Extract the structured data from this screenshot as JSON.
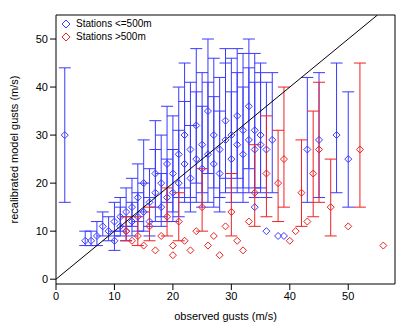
{
  "chart_data": {
    "type": "scatter",
    "x_label": "observed gusts (m/s)",
    "y_label": "recalibrated model gusts (m/s)",
    "xlim": [
      0,
      58
    ],
    "ylim": [
      -1,
      55
    ],
    "xticks": [
      0,
      10,
      20,
      30,
      40,
      50
    ],
    "yticks": [
      0,
      10,
      20,
      30,
      40,
      50
    ],
    "legend": "top-left",
    "grid": false,
    "series": [
      {
        "name": "Stations <=500m",
        "color": "#3a3aff",
        "marker": "diamond",
        "x": [
          1.5,
          5,
          6,
          7,
          8,
          9,
          10,
          10,
          11,
          11,
          12,
          12,
          13,
          13,
          14,
          14,
          15,
          15,
          16,
          16,
          17,
          17,
          18,
          18,
          19,
          19,
          20,
          20,
          21,
          21,
          22,
          22,
          23,
          23,
          24,
          24,
          25,
          25,
          26,
          26,
          27,
          27,
          28,
          28,
          29,
          29,
          30,
          30,
          31,
          31,
          32,
          32,
          33,
          33,
          34,
          34,
          35,
          35,
          36,
          37,
          38,
          39,
          43,
          45,
          48,
          50,
          36,
          34
        ],
        "values": [
          30,
          8,
          8,
          9,
          11,
          10,
          12,
          8,
          13,
          11,
          14,
          10,
          15,
          12,
          13,
          17,
          14,
          20,
          16,
          12,
          18,
          22,
          15,
          20,
          24,
          17,
          22,
          18,
          26,
          20,
          24,
          30,
          21,
          27,
          25,
          32,
          23,
          28,
          26,
          35,
          24,
          30,
          27,
          22,
          29,
          33,
          25,
          30,
          28,
          34,
          26,
          31,
          29,
          36,
          27,
          31,
          30,
          28,
          27,
          29,
          9,
          9,
          27,
          29,
          30,
          25,
          10,
          15
        ],
        "error": [
          [
            14,
            14
          ],
          [
            1,
            2
          ],
          [
            1,
            2
          ],
          [
            2,
            3
          ],
          [
            2,
            3
          ],
          [
            2,
            3
          ],
          [
            3,
            4
          ],
          [
            2,
            2
          ],
          [
            3,
            4
          ],
          [
            2,
            4
          ],
          [
            3,
            5
          ],
          [
            2,
            3
          ],
          [
            4,
            6
          ],
          [
            3,
            4
          ],
          [
            3,
            5
          ],
          [
            5,
            7
          ],
          [
            4,
            6
          ],
          [
            6,
            9
          ],
          [
            5,
            7
          ],
          [
            3,
            5
          ],
          [
            6,
            9
          ],
          [
            7,
            11
          ],
          [
            4,
            7
          ],
          [
            7,
            10
          ],
          [
            8,
            12
          ],
          [
            5,
            8
          ],
          [
            8,
            12
          ],
          [
            6,
            9
          ],
          [
            9,
            14
          ],
          [
            7,
            11
          ],
          [
            8,
            13
          ],
          [
            11,
            15
          ],
          [
            7,
            11
          ],
          [
            10,
            14
          ],
          [
            9,
            14
          ],
          [
            12,
            16
          ],
          [
            8,
            13
          ],
          [
            10,
            15
          ],
          [
            10,
            15
          ],
          [
            13,
            15
          ],
          [
            9,
            14
          ],
          [
            11,
            16
          ],
          [
            10,
            15
          ],
          [
            8,
            13
          ],
          [
            11,
            16
          ],
          [
            12,
            15
          ],
          [
            9,
            14
          ],
          [
            11,
            16
          ],
          [
            10,
            15
          ],
          [
            13,
            14
          ],
          [
            10,
            14
          ],
          [
            12,
            16
          ],
          [
            11,
            15
          ],
          [
            13,
            14
          ],
          [
            10,
            14
          ],
          [
            12,
            16
          ],
          [
            11,
            15
          ],
          [
            10,
            15
          ],
          [
            10,
            14
          ],
          [
            11,
            14
          ],
          null,
          null,
          [
            11,
            15
          ],
          [
            12,
            14
          ],
          [
            12,
            15
          ],
          [
            10,
            14
          ],
          null,
          null
        ]
      },
      {
        "name": "Stations >500m",
        "color": "#ee2222",
        "marker": "diamond",
        "x": [
          12,
          13,
          14,
          15,
          16,
          17,
          18,
          19,
          20,
          20,
          21,
          22,
          23,
          24,
          25,
          26,
          27,
          28,
          29,
          30,
          31,
          32,
          33,
          34,
          36,
          38,
          39,
          40,
          41,
          42,
          43,
          44,
          45,
          47,
          50,
          52,
          56
        ],
        "values": [
          10,
          8,
          9,
          7,
          11,
          6,
          9,
          13,
          7,
          5,
          12,
          8,
          6,
          10,
          15,
          7,
          9,
          5,
          11,
          14,
          8,
          6,
          12,
          18,
          22,
          20,
          25,
          8,
          10,
          18,
          12,
          22,
          27,
          15,
          11,
          27,
          7
        ],
        "error": [
          [
            2,
            3
          ],
          null,
          [
            2,
            4
          ],
          null,
          [
            3,
            4
          ],
          null,
          null,
          [
            4,
            6
          ],
          null,
          null,
          [
            4,
            6
          ],
          null,
          null,
          null,
          [
            5,
            8
          ],
          null,
          null,
          null,
          null,
          [
            5,
            8
          ],
          null,
          null,
          null,
          [
            7,
            10
          ],
          [
            9,
            12
          ],
          [
            8,
            11
          ],
          [
            10,
            15
          ],
          null,
          null,
          [
            7,
            11
          ],
          null,
          [
            9,
            13
          ],
          [
            11,
            14
          ],
          [
            6,
            10
          ],
          null,
          [
            12,
            18
          ],
          null
        ]
      }
    ]
  }
}
